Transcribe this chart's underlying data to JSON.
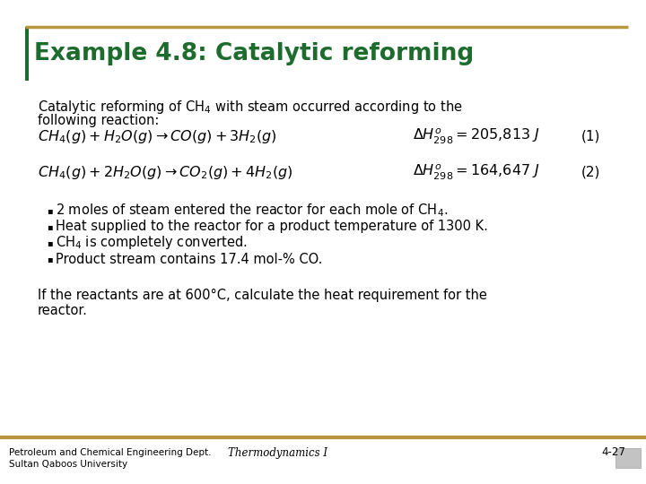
{
  "title": "Example 4.8: Catalytic reforming",
  "title_color": "#1e6b2e",
  "header_bar_color": "#b8963e",
  "left_bar_color": "#1e6b2e",
  "bg_color": "#ffffff",
  "body_text_color": "#000000",
  "footer_left1": "Petroleum and Chemical Engineering Dept.",
  "footer_left2": "Sultan Qaboos University",
  "footer_center": "Thermodynamics I",
  "footer_right": "4-27",
  "eq1_lhs": "$CH_4(g)+H_2O(g)\\rightarrow CO(g)+3H_2(g)$",
  "eq1_rhs": "$\\Delta H^o_{298}=205{,}813\\ J$",
  "eq1_num": "(1)",
  "eq2_lhs": "$CH_4(g)+2H_2O(g)\\rightarrow CO_2(g)+4H_2(g)$",
  "eq2_rhs": "$\\Delta H^o_{298}=164{,}647\\ J$",
  "eq2_num": "(2)",
  "bullets": [
    "2 moles of steam entered the reactor for each mole of CH$_4$.",
    "Heat supplied to the reactor for a product temperature of 1300 K.",
    "CH$_4$ is completely converted.",
    "Product stream contains 17.4 mol-% CO."
  ],
  "closing_line1": "If the reactants are at 600°C, calculate the heat requirement for the",
  "closing_line2": "reactor."
}
